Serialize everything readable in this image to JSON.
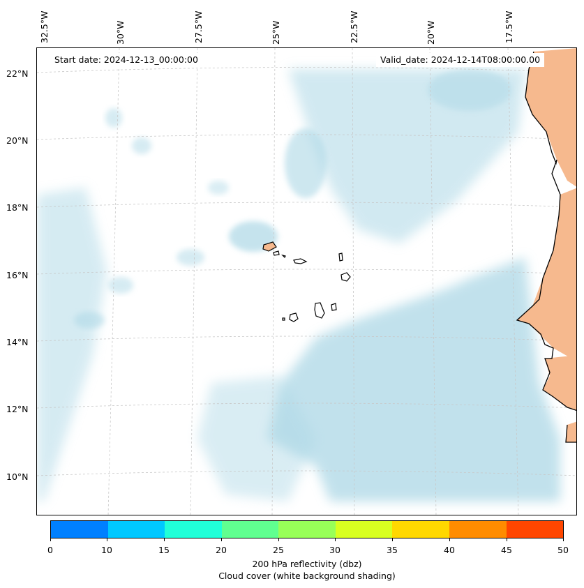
{
  "map": {
    "start_date": "Start date: 2024-12-13_00:00:00",
    "valid_date": "Valid_date: 2024-12-14T08:00:00.00",
    "lon_labels": [
      "32.5°W",
      "30°W",
      "27.5°W",
      "25°W",
      "22.5°W",
      "20°W",
      "17.5°W"
    ],
    "lat_labels": [
      "22°N",
      "20°N",
      "18°N",
      "16°N",
      "14°N",
      "12°N",
      "10°N"
    ],
    "land_color": "#f6b98e",
    "cloud_color": "#add8e6",
    "coastline_color": "#000000",
    "grid": true
  },
  "colorbar": {
    "ticks": [
      "0",
      "10",
      "15",
      "20",
      "25",
      "30",
      "35",
      "40",
      "45",
      "50"
    ],
    "colors": [
      "#0080ff",
      "#00c8ff",
      "#20ffd8",
      "#60ff90",
      "#98ff58",
      "#d8ff20",
      "#ffd800",
      "#ff8c00",
      "#ff4600"
    ],
    "label_line1": "200 hPa reflectivity (dbz)",
    "label_line2": "Cloud cover (white background shading)"
  }
}
